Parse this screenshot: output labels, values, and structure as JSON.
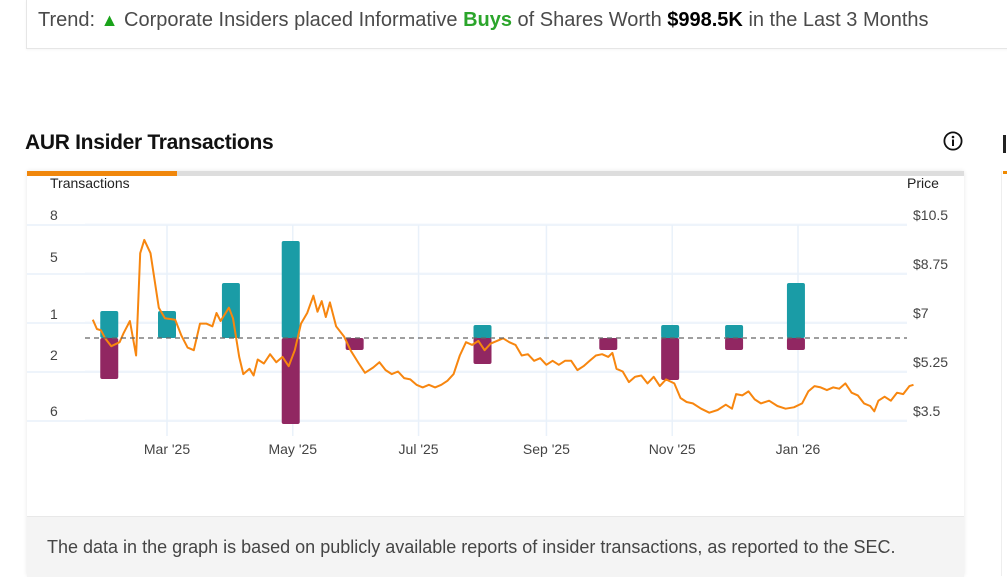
{
  "trend": {
    "prefix": "Trend:",
    "arrow_icon": "triangle-up-icon",
    "arrow_glyph": "▲",
    "text_before": "Corporate Insiders placed Informative",
    "highlight": "Buys",
    "text_middle": "of Shares Worth",
    "amount": "$998.5K",
    "text_after": "in the Last 3 Months",
    "colors": {
      "up": "#1aa31a",
      "buys": "#2ba52b"
    }
  },
  "section": {
    "title": "AUR Insider Transactions",
    "info_icon": "info-circle-icon"
  },
  "footer": {
    "note": "The data in the graph is based on publicly available reports of insider transactions, as reported to the SEC."
  },
  "colors": {
    "buy": "#1a9ca6",
    "sell": "#912762",
    "price_line": "#f7860f",
    "tab_active": "#f0870c",
    "gridline": "#e9f1fa",
    "baseline": "#666666"
  },
  "chart_data": {
    "type": "bar+line",
    "title": "AUR Insider Transactions",
    "left_axis_title": "Transactions",
    "right_axis_title": "Price",
    "left_tick_labels": [
      "8",
      "5",
      "1",
      "2",
      "6"
    ],
    "right_tick_labels": [
      "$10.5",
      "$8.75",
      "$7",
      "$5.25",
      "$3.5"
    ],
    "price_range": [
      3.5,
      10.5
    ],
    "x_tick_labels": [
      "Mar '25",
      "May '25",
      "Jul '25",
      "Sep '25",
      "Nov '25",
      "Jan '26"
    ],
    "x_range": [
      "2025-01-15",
      "2026-02-28"
    ],
    "grid": true,
    "baseline_style": "dashed",
    "transactions": [
      {
        "date": "2025-02-01",
        "buys": 1,
        "sells": 2
      },
      {
        "date": "2025-03-01",
        "buys": 1,
        "sells": 0
      },
      {
        "date": "2025-04-01",
        "buys": 2,
        "sells": 0
      },
      {
        "date": "2025-04-30",
        "buys": 5,
        "sells": 6
      },
      {
        "date": "2025-05-31",
        "buys": 0,
        "sells": 1
      },
      {
        "date": "2025-08-01",
        "buys": 1,
        "sells": 2
      },
      {
        "date": "2025-10-01",
        "buys": 0,
        "sells": 1
      },
      {
        "date": "2025-10-31",
        "buys": 1,
        "sells": 3
      },
      {
        "date": "2025-12-01",
        "buys": 1,
        "sells": 1
      },
      {
        "date": "2025-12-31",
        "buys": 2,
        "sells": 1
      }
    ],
    "price_series": {
      "name": "Price",
      "points": [
        [
          "2025-01-24",
          6.9
        ],
        [
          "2025-01-26",
          6.55
        ],
        [
          "2025-01-28",
          6.5
        ],
        [
          "2025-01-30",
          6.2
        ],
        [
          "2025-02-02",
          5.9
        ],
        [
          "2025-02-06",
          6.05
        ],
        [
          "2025-02-08",
          6.4
        ],
        [
          "2025-02-11",
          6.85
        ],
        [
          "2025-02-14",
          5.55
        ],
        [
          "2025-02-16",
          9.4
        ],
        [
          "2025-02-18",
          9.9
        ],
        [
          "2025-02-21",
          9.4
        ],
        [
          "2025-02-25",
          7.35
        ],
        [
          "2025-02-28",
          6.95
        ],
        [
          "2025-03-05",
          6.9
        ],
        [
          "2025-03-08",
          6.3
        ],
        [
          "2025-03-11",
          5.85
        ],
        [
          "2025-03-14",
          5.75
        ],
        [
          "2025-03-17",
          6.75
        ],
        [
          "2025-03-20",
          6.75
        ],
        [
          "2025-03-23",
          6.65
        ],
        [
          "2025-03-25",
          7.15
        ],
        [
          "2025-03-27",
          6.85
        ],
        [
          "2025-03-31",
          7.35
        ],
        [
          "2025-04-02",
          6.95
        ],
        [
          "2025-04-05",
          5.5
        ],
        [
          "2025-04-07",
          4.85
        ],
        [
          "2025-04-10",
          5.05
        ],
        [
          "2025-04-12",
          4.8
        ],
        [
          "2025-04-14",
          5.4
        ],
        [
          "2025-04-17",
          5.25
        ],
        [
          "2025-04-20",
          5.6
        ],
        [
          "2025-04-23",
          5.3
        ],
        [
          "2025-04-26",
          5.5
        ],
        [
          "2025-04-29",
          5.15
        ],
        [
          "2025-05-02",
          5.75
        ],
        [
          "2025-05-05",
          6.75
        ],
        [
          "2025-05-08",
          7.15
        ],
        [
          "2025-05-11",
          7.8
        ],
        [
          "2025-05-13",
          7.2
        ],
        [
          "2025-05-15",
          7.6
        ],
        [
          "2025-05-17",
          7.0
        ],
        [
          "2025-05-19",
          7.55
        ],
        [
          "2025-05-22",
          6.65
        ],
        [
          "2025-05-26",
          6.25
        ],
        [
          "2025-05-29",
          5.75
        ],
        [
          "2025-06-02",
          5.25
        ],
        [
          "2025-06-05",
          4.9
        ],
        [
          "2025-06-09",
          5.1
        ],
        [
          "2025-06-12",
          5.3
        ],
        [
          "2025-06-15",
          5.0
        ],
        [
          "2025-06-18",
          4.85
        ],
        [
          "2025-06-21",
          4.95
        ],
        [
          "2025-06-24",
          4.7
        ],
        [
          "2025-06-27",
          4.65
        ],
        [
          "2025-06-30",
          4.45
        ],
        [
          "2025-07-03",
          4.35
        ],
        [
          "2025-07-06",
          4.45
        ],
        [
          "2025-07-09",
          4.35
        ],
        [
          "2025-07-12",
          4.45
        ],
        [
          "2025-07-15",
          4.6
        ],
        [
          "2025-07-18",
          4.85
        ],
        [
          "2025-07-21",
          5.55
        ],
        [
          "2025-07-24",
          6.05
        ],
        [
          "2025-07-27",
          5.95
        ],
        [
          "2025-07-30",
          6.1
        ],
        [
          "2025-08-02",
          5.75
        ],
        [
          "2025-08-05",
          6.0
        ],
        [
          "2025-08-08",
          6.1
        ],
        [
          "2025-08-11",
          6.2
        ],
        [
          "2025-08-14",
          6.05
        ],
        [
          "2025-08-17",
          5.95
        ],
        [
          "2025-08-20",
          5.55
        ],
        [
          "2025-08-23",
          5.6
        ],
        [
          "2025-08-26",
          5.35
        ],
        [
          "2025-08-29",
          5.45
        ],
        [
          "2025-09-01",
          5.2
        ],
        [
          "2025-09-04",
          5.35
        ],
        [
          "2025-09-07",
          5.2
        ],
        [
          "2025-09-10",
          5.35
        ],
        [
          "2025-09-13",
          5.35
        ],
        [
          "2025-09-16",
          5.0
        ],
        [
          "2025-09-19",
          5.15
        ],
        [
          "2025-09-22",
          5.35
        ],
        [
          "2025-09-25",
          5.55
        ],
        [
          "2025-09-28",
          5.6
        ],
        [
          "2025-10-01",
          5.5
        ],
        [
          "2025-10-03",
          5.65
        ],
        [
          "2025-10-05",
          5.05
        ],
        [
          "2025-10-08",
          4.95
        ],
        [
          "2025-10-11",
          4.55
        ],
        [
          "2025-10-14",
          4.75
        ],
        [
          "2025-10-17",
          4.8
        ],
        [
          "2025-10-20",
          4.5
        ],
        [
          "2025-10-23",
          4.75
        ],
        [
          "2025-10-26",
          4.4
        ],
        [
          "2025-10-29",
          4.65
        ],
        [
          "2025-11-02",
          4.5
        ],
        [
          "2025-11-05",
          3.95
        ],
        [
          "2025-11-08",
          3.8
        ],
        [
          "2025-11-11",
          3.75
        ],
        [
          "2025-11-15",
          3.55
        ],
        [
          "2025-11-19",
          3.4
        ],
        [
          "2025-11-23",
          3.5
        ],
        [
          "2025-11-27",
          3.7
        ],
        [
          "2025-11-30",
          3.55
        ],
        [
          "2025-12-02",
          4.1
        ],
        [
          "2025-12-05",
          4.05
        ],
        [
          "2025-12-08",
          4.2
        ],
        [
          "2025-12-11",
          3.9
        ],
        [
          "2025-12-14",
          3.75
        ],
        [
          "2025-12-18",
          3.85
        ],
        [
          "2025-12-22",
          3.65
        ],
        [
          "2025-12-26",
          3.55
        ],
        [
          "2025-12-30",
          3.6
        ],
        [
          "2026-01-03",
          3.75
        ],
        [
          "2026-01-06",
          4.2
        ],
        [
          "2026-01-09",
          4.4
        ],
        [
          "2026-01-12",
          4.35
        ],
        [
          "2026-01-15",
          4.25
        ],
        [
          "2026-01-18",
          4.35
        ],
        [
          "2026-01-21",
          4.3
        ],
        [
          "2026-01-24",
          4.5
        ],
        [
          "2026-01-27",
          4.15
        ],
        [
          "2026-01-30",
          4.05
        ],
        [
          "2026-02-02",
          3.75
        ],
        [
          "2026-02-05",
          3.65
        ],
        [
          "2026-02-07",
          3.45
        ],
        [
          "2026-02-09",
          3.85
        ],
        [
          "2026-02-12",
          4.0
        ],
        [
          "2026-02-15",
          3.85
        ],
        [
          "2026-02-18",
          4.15
        ],
        [
          "2026-02-21",
          4.1
        ],
        [
          "2026-02-24",
          4.4
        ],
        [
          "2026-02-26",
          4.45
        ]
      ]
    }
  }
}
